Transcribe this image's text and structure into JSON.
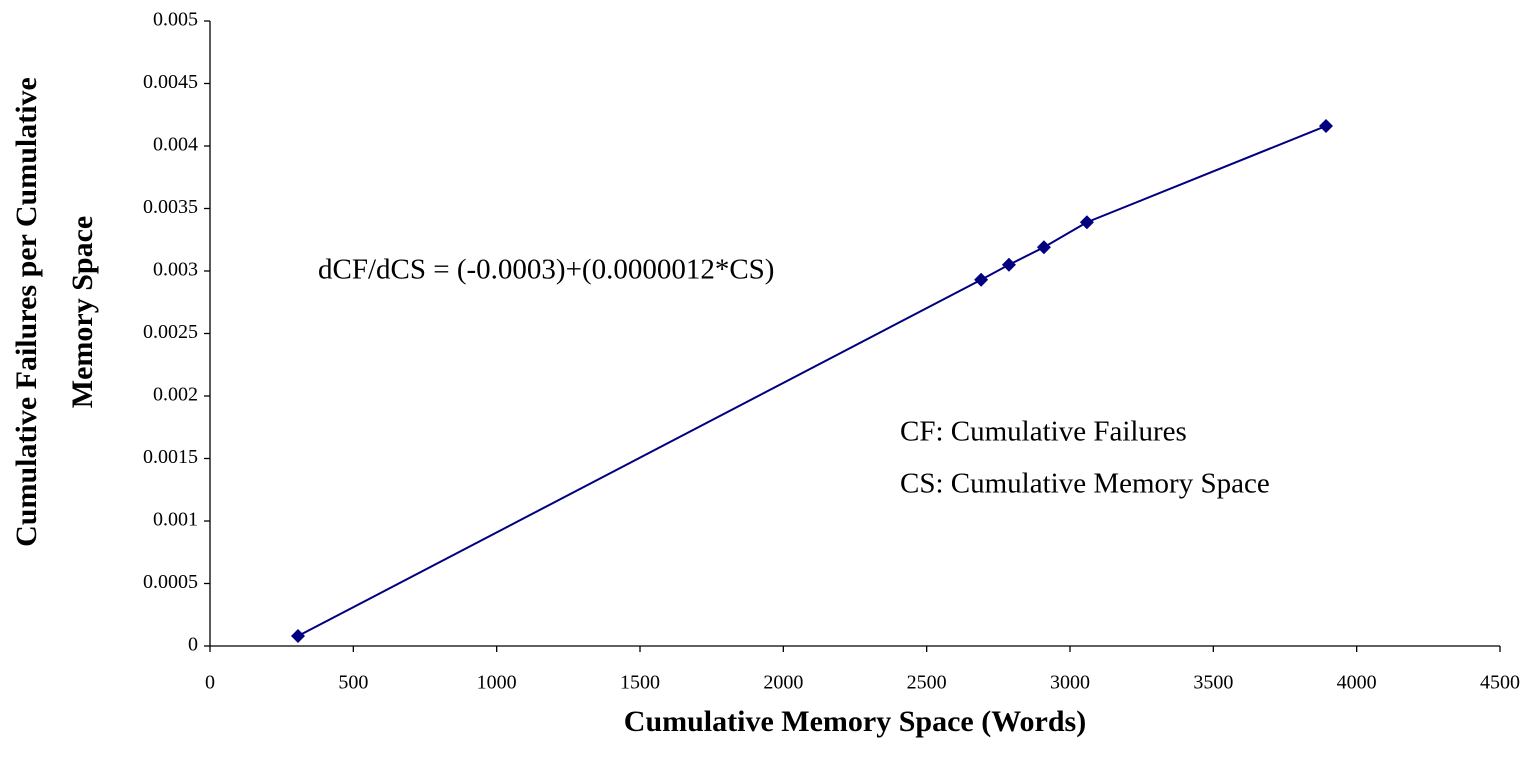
{
  "chart_data": {
    "type": "scatter",
    "xlabel": "Cumulative Memory Space (Words)",
    "ylabel": [
      "Cumulative Failures per Cumulative",
      "Memory Space"
    ],
    "annotations": [
      "dCF/dCS = (-0.0003)+(0.0000012*CS)",
      "CF: Cumulative Failures",
      "CS: Cumulative Memory Space"
    ],
    "series": [
      {
        "color": "#000080",
        "x": [
          307,
          2690,
          2787,
          2909,
          3059,
          3893
        ],
        "values": [
          8e-05,
          0.00293,
          0.00305,
          0.00319,
          0.00339,
          0.00416
        ]
      }
    ],
    "xlim": [
      0,
      4500
    ],
    "xticks": [
      0,
      500,
      1000,
      1500,
      2000,
      2500,
      3000,
      3500,
      4000,
      4500
    ],
    "ylim": [
      0,
      0.005
    ],
    "yticks": [
      0,
      0.0005,
      0.001,
      0.0015,
      0.002,
      0.0025,
      0.003,
      0.0035,
      0.004,
      0.0045,
      0.005
    ],
    "grid": false
  }
}
